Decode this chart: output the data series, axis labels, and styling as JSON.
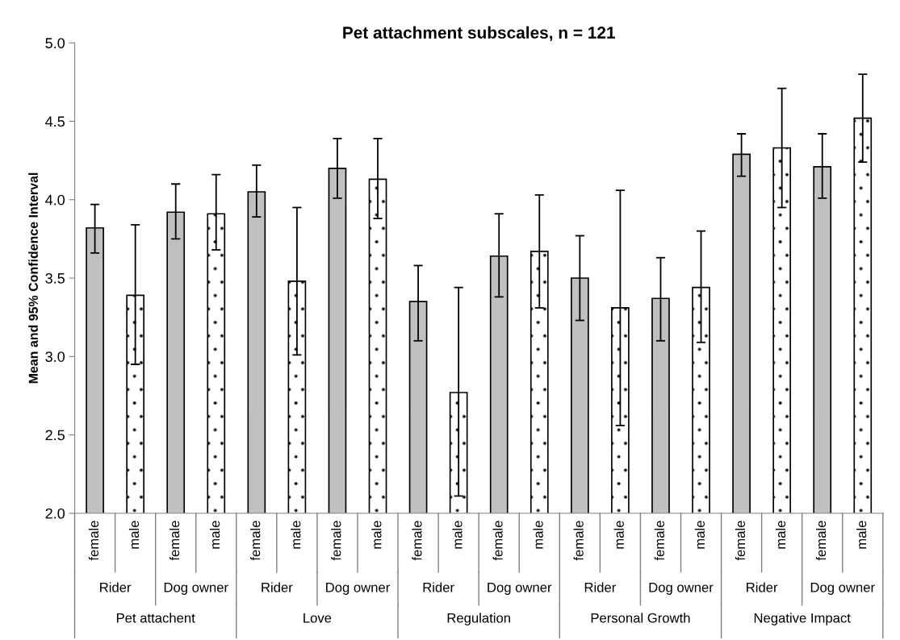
{
  "chart_data": {
    "type": "bar",
    "title": "Pet attachment subscales, n = 121",
    "ylabel": "Mean and 95% Confidence Interval",
    "categories": [
      "female",
      "male",
      "female",
      "male",
      "female",
      "male",
      "female",
      "male",
      "female",
      "male",
      "female",
      "male",
      "female",
      "male",
      "female",
      "male",
      "female",
      "male",
      "female",
      "male"
    ],
    "values": [
      3.82,
      3.39,
      3.92,
      3.91,
      4.05,
      3.48,
      4.2,
      4.13,
      3.35,
      2.77,
      3.64,
      3.67,
      3.5,
      3.31,
      3.37,
      3.44,
      4.29,
      4.33,
      4.21,
      4.52
    ],
    "errors": [
      [
        3.66,
        3.97
      ],
      [
        2.95,
        3.84
      ],
      [
        3.75,
        4.1
      ],
      [
        3.68,
        4.16
      ],
      [
        3.89,
        4.22
      ],
      [
        3.01,
        3.95
      ],
      [
        4.01,
        4.39
      ],
      [
        3.88,
        4.39
      ],
      [
        3.1,
        3.58
      ],
      [
        2.11,
        3.44
      ],
      [
        3.38,
        3.91
      ],
      [
        3.31,
        4.03
      ],
      [
        3.23,
        3.77
      ],
      [
        2.56,
        4.06
      ],
      [
        3.1,
        3.63
      ],
      [
        3.09,
        3.8
      ],
      [
        4.15,
        4.42
      ],
      [
        3.95,
        4.71
      ],
      [
        4.01,
        4.42
      ],
      [
        4.24,
        4.8
      ]
    ],
    "colors": [
      "#c0c0c0",
      "#ffffff",
      "#c0c0c0",
      "#ffffff",
      "#c0c0c0",
      "#ffffff",
      "#c0c0c0",
      "#ffffff",
      "#c0c0c0",
      "#ffffff",
      "#c0c0c0",
      "#ffffff",
      "#c0c0c0",
      "#ffffff",
      "#c0c0c0",
      "#ffffff",
      "#c0c0c0",
      "#ffffff",
      "#c0c0c0",
      "#ffffff"
    ],
    "annotations": [
      "Rider",
      "Dog owner",
      "Rider",
      "Dog owner",
      "Rider",
      "Dog owner",
      "Rider",
      "Dog owner",
      "Rider",
      "Dog owner",
      "Pet attachent",
      "Love",
      "Regulation",
      "Personal Growth",
      "Negative Impact"
    ],
    "ylim": [
      2.0,
      5.0
    ],
    "yticks": [
      {
        "value": 2.0,
        "label": "2.0"
      },
      {
        "value": 2.5,
        "label": "2.5"
      },
      {
        "value": 3.0,
        "label": "3.0"
      },
      {
        "value": 3.5,
        "label": "3.5"
      },
      {
        "value": 4.0,
        "label": "4.0"
      },
      {
        "value": 4.5,
        "label": "4.5"
      },
      {
        "value": 5.0,
        "label": "5.0"
      }
    ],
    "grid": false,
    "legend": false
  }
}
